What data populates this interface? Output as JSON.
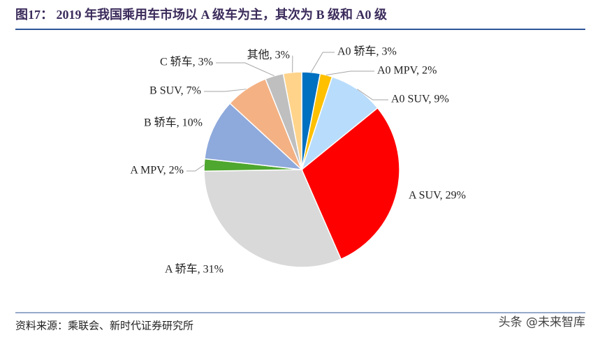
{
  "header": {
    "title": "图17：  2019 年我国乘用车市场以 A 级车为主，其次为 B 级和 A0 级"
  },
  "chart_data": {
    "type": "pie",
    "values": [
      3,
      2,
      9,
      29,
      31,
      2,
      10,
      7,
      3,
      3
    ],
    "value_labels": [
      "A0 轿车, 3%",
      "A0 MPV, 2%",
      "A0 SUV, 9%",
      "A SUV, 29%",
      "A 轿车, 31%",
      "A MPV, 2%",
      "B 轿车, 10%",
      "B SUV, 7%",
      "C 轿车, 3%",
      "其他, 3%"
    ],
    "colors": [
      "#0070c0",
      "#ffc000",
      "#b8dcfc",
      "#ff0000",
      "#d9d9d9",
      "#4ea72e",
      "#8ea9db",
      "#f4b183",
      "#bfbfbf",
      "#ffd38a"
    ]
  },
  "footer": {
    "source": "资料来源：乘联会、新时代证券研究所",
    "watermark": "头条 @未来智库"
  }
}
